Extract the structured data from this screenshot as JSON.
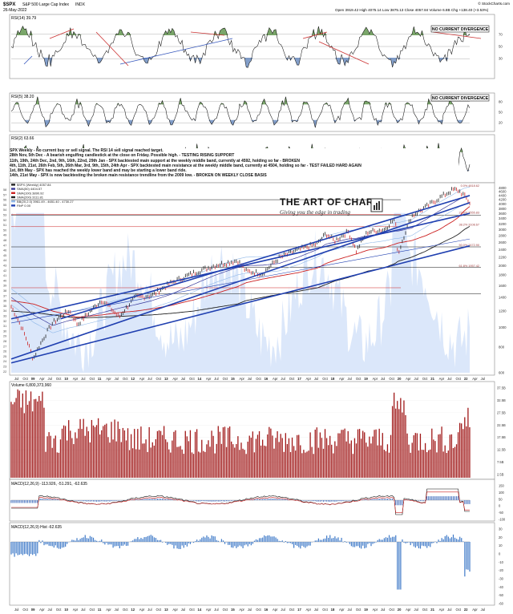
{
  "header": {
    "symbol": "$SPX",
    "name": "S&P 500 Large Cap Index",
    "exchange": "INDX",
    "date": "26-May-2022",
    "quote": "Open 3919.42  High 4075.14  Low 3875.13  Close 4057.84  Volume 6.8B  Chg +138.40 (+3.53%)",
    "credit": "© StockCharts.com"
  },
  "panels": {
    "rsi14": {
      "label": "RSI(14) 39.79",
      "tag": "NO CURRENT DIVERGENCE",
      "levels": [
        "70",
        "50",
        "30"
      ]
    },
    "rsi5": {
      "label": "RSI(5) 38.20",
      "tag": "NO CURRENT DIVERGENCE",
      "levels": [
        "80",
        "50",
        "20"
      ]
    },
    "rsi2": {
      "label": "RSI(2) 63.66"
    },
    "price": {
      "legend": [
        "$SPX (Weekly) 4057.84",
        "SMA(50) 4404.57",
        "SMA(100) 3890.92",
        "SMA(200) 3111.81",
        "BB(20,2.0) 3961.49 - 4651.40 - 4730.27",
        "FibP 0.00"
      ],
      "fib_labels": [
        "61.8% 1957.42",
        "50.0% 2472.90",
        "38.2% 3108.67",
        "23.6% 3555.83",
        "0.0% 4818.62"
      ],
      "price_axis": [
        "4800",
        "4600",
        "4400",
        "4200",
        "4000",
        "3800",
        "3600",
        "3400",
        "3200",
        "3000",
        "2800",
        "2600",
        "2400",
        "2200",
        "2000",
        "1800",
        "1600",
        "1400",
        "1200",
        "1000",
        "800",
        "600"
      ]
    },
    "volume": {
      "label": "Volume 6,800,373,960",
      "axis": [
        "37.5B",
        "32.5B",
        "27.5B",
        "22.5B",
        "17.5B",
        "12.5B",
        "7.5B",
        "2.5B"
      ]
    },
    "macd1": {
      "label": "MACD(12,26,9) -113.926, -51.291, -62.635",
      "axis": [
        "150",
        "100",
        "50",
        "0",
        "-50",
        "-100"
      ]
    },
    "macd2": {
      "label": "MACD(12,26,9) Hist -62.635",
      "axis": [
        "30",
        "20",
        "10",
        "0",
        "-10",
        "-20",
        "-30",
        "-40",
        "-50",
        "-60"
      ]
    }
  },
  "notes": [
    "SPX Weekly - No current buy or sell signal. The RSI 14 sell signal reached target.",
    "28th Nov, 5th Dec - A bearish engulfing candlestick at the close on Friday. Possible high. - TESTING RISING SUPPORT",
    "11th, 19th, 24th Dec, 2nd, 9th, 16th, 22nd, 29th Jan - SPX backtested main support at the weekly middle band, currently at 4592, holding so far - BROKEN",
    "4th, 11th, 21st, 26th Feb, 5th, 26th Mar, 3rd, 9th, 15th, 24th Apr - SPX backtested main resistance at the weekly middle band, currently at 4504, holding so far - TEST FAILED HARD AGAIN",
    "1st, 8th May - SPX has reached the weekly lower band and may be starting a lower band ride.",
    "",
    "14th, 21st May - SPX is now backtesting the broken main resistance trendline from the 2009 low. - BROKEN ON WEEKLY CLOSE BASIS"
  ],
  "logo": {
    "title": "THE ART OF CHART",
    "tagline": "Giving you the edge in trading"
  },
  "time_axis": {
    "top": [
      "Jul",
      "Oct",
      "09",
      "Apr",
      "Jul",
      "Oct",
      "10",
      "Apr",
      "Jul",
      "Oct",
      "11",
      "Apr",
      "Jul",
      "Oct",
      "12",
      "Apr",
      "Jul",
      "Oct",
      "13",
      "Apr",
      "Jul",
      "Oct",
      "14",
      "Apr",
      "Jul",
      "Oct",
      "15",
      "Apr",
      "Jul",
      "Oct",
      "16",
      "Apr",
      "Jul",
      "Oct",
      "17",
      "Apr",
      "Jul",
      "Oct",
      "18",
      "Apr",
      "Jul",
      "Oct",
      "19",
      "Apr",
      "Jul",
      "Oct",
      "20",
      "Apr",
      "Jul",
      "Oct",
      "21",
      "Apr",
      "Jul",
      "Oct",
      "22",
      "Apr",
      "Jul"
    ],
    "bottom": [
      "Jul",
      "Oct",
      "09",
      "Apr",
      "Jul",
      "Oct",
      "10",
      "Apr",
      "Jul",
      "Oct",
      "11",
      "Apr",
      "Jul",
      "Oct",
      "12",
      "Apr",
      "Jul",
      "Oct",
      "13",
      "Apr",
      "Jul",
      "Oct",
      "14",
      "Apr",
      "Jul",
      "Oct",
      "15",
      "Apr",
      "Jul",
      "Oct",
      "16",
      "Apr",
      "Jul",
      "Oct",
      "17",
      "Apr",
      "Jul",
      "Oct",
      "18",
      "Apr",
      "Jul",
      "Oct",
      "19",
      "Apr",
      "Jul",
      "Oct",
      "20",
      "Apr",
      "Jul",
      "Oct",
      "21",
      "Apr",
      "Jul",
      "Oct",
      "22",
      "Apr",
      "Jul"
    ]
  },
  "colors": {
    "accent": "#1f3fb0",
    "up": "#2a8a2a",
    "down": "#cc2222",
    "bb": "#8fb8e8",
    "volume": "#a01818"
  },
  "chart_data": {
    "type": "line",
    "title": "",
    "xlabel": "",
    "ylabel": "",
    "ylim": [
      600,
      4900
    ],
    "scale": "log",
    "x": [
      "2008-07",
      "2009-03",
      "2009-10",
      "2010-04",
      "2010-07",
      "2011-04",
      "2011-10",
      "2012-04",
      "2012-10",
      "2013-05",
      "2014-01",
      "2014-09",
      "2015-05",
      "2015-08",
      "2016-02",
      "2016-08",
      "2017-03",
      "2017-10",
      "2018-01",
      "2018-04",
      "2018-09",
      "2018-12",
      "2019-04",
      "2019-10",
      "2020-02",
      "2020-03",
      "2020-08",
      "2021-01",
      "2021-06",
      "2021-11",
      "2022-01",
      "2022-03",
      "2022-05"
    ],
    "series": [
      {
        "name": "$SPX (Weekly)",
        "values": [
          1260,
          700,
          1050,
          1210,
          1030,
          1360,
          1120,
          1400,
          1430,
          1650,
          1840,
          2010,
          2120,
          1880,
          1830,
          2180,
          2390,
          2570,
          2870,
          2640,
          2930,
          2350,
          2920,
          3000,
          3390,
          2240,
          3500,
          3850,
          4280,
          4700,
          4660,
          4400,
          4058
        ]
      },
      {
        "name": "SMA(50)",
        "values": [
          1400,
          1150,
          1020,
          1080,
          1100,
          1180,
          1240,
          1290,
          1350,
          1450,
          1620,
          1800,
          1960,
          2000,
          2010,
          2050,
          2200,
          2400,
          2550,
          2600,
          2700,
          2720,
          2800,
          2870,
          2950,
          2950,
          3050,
          3350,
          3700,
          4050,
          4200,
          4350,
          4404
        ]
      },
      {
        "name": "SMA(100)",
        "values": [
          1350,
          1300,
          1200,
          1150,
          1120,
          1150,
          1180,
          1200,
          1230,
          1280,
          1360,
          1460,
          1580,
          1650,
          1720,
          1780,
          1850,
          1950,
          2050,
          2120,
          2220,
          2280,
          2380,
          2450,
          2550,
          2580,
          2650,
          2800,
          3000,
          3300,
          3450,
          3700,
          3891
        ]
      },
      {
        "name": "SMA(200)",
        "values": [
          1200,
          1180,
          1150,
          1120,
          1110,
          1120,
          1130,
          1140,
          1150,
          1170,
          1200,
          1250,
          1300,
          1350,
          1400,
          1450,
          1500,
          1560,
          1620,
          1680,
          1750,
          1800,
          1880,
          1950,
          2050,
          2100,
          2200,
          2350,
          2550,
          2750,
          2850,
          3000,
          3112
        ]
      }
    ]
  }
}
